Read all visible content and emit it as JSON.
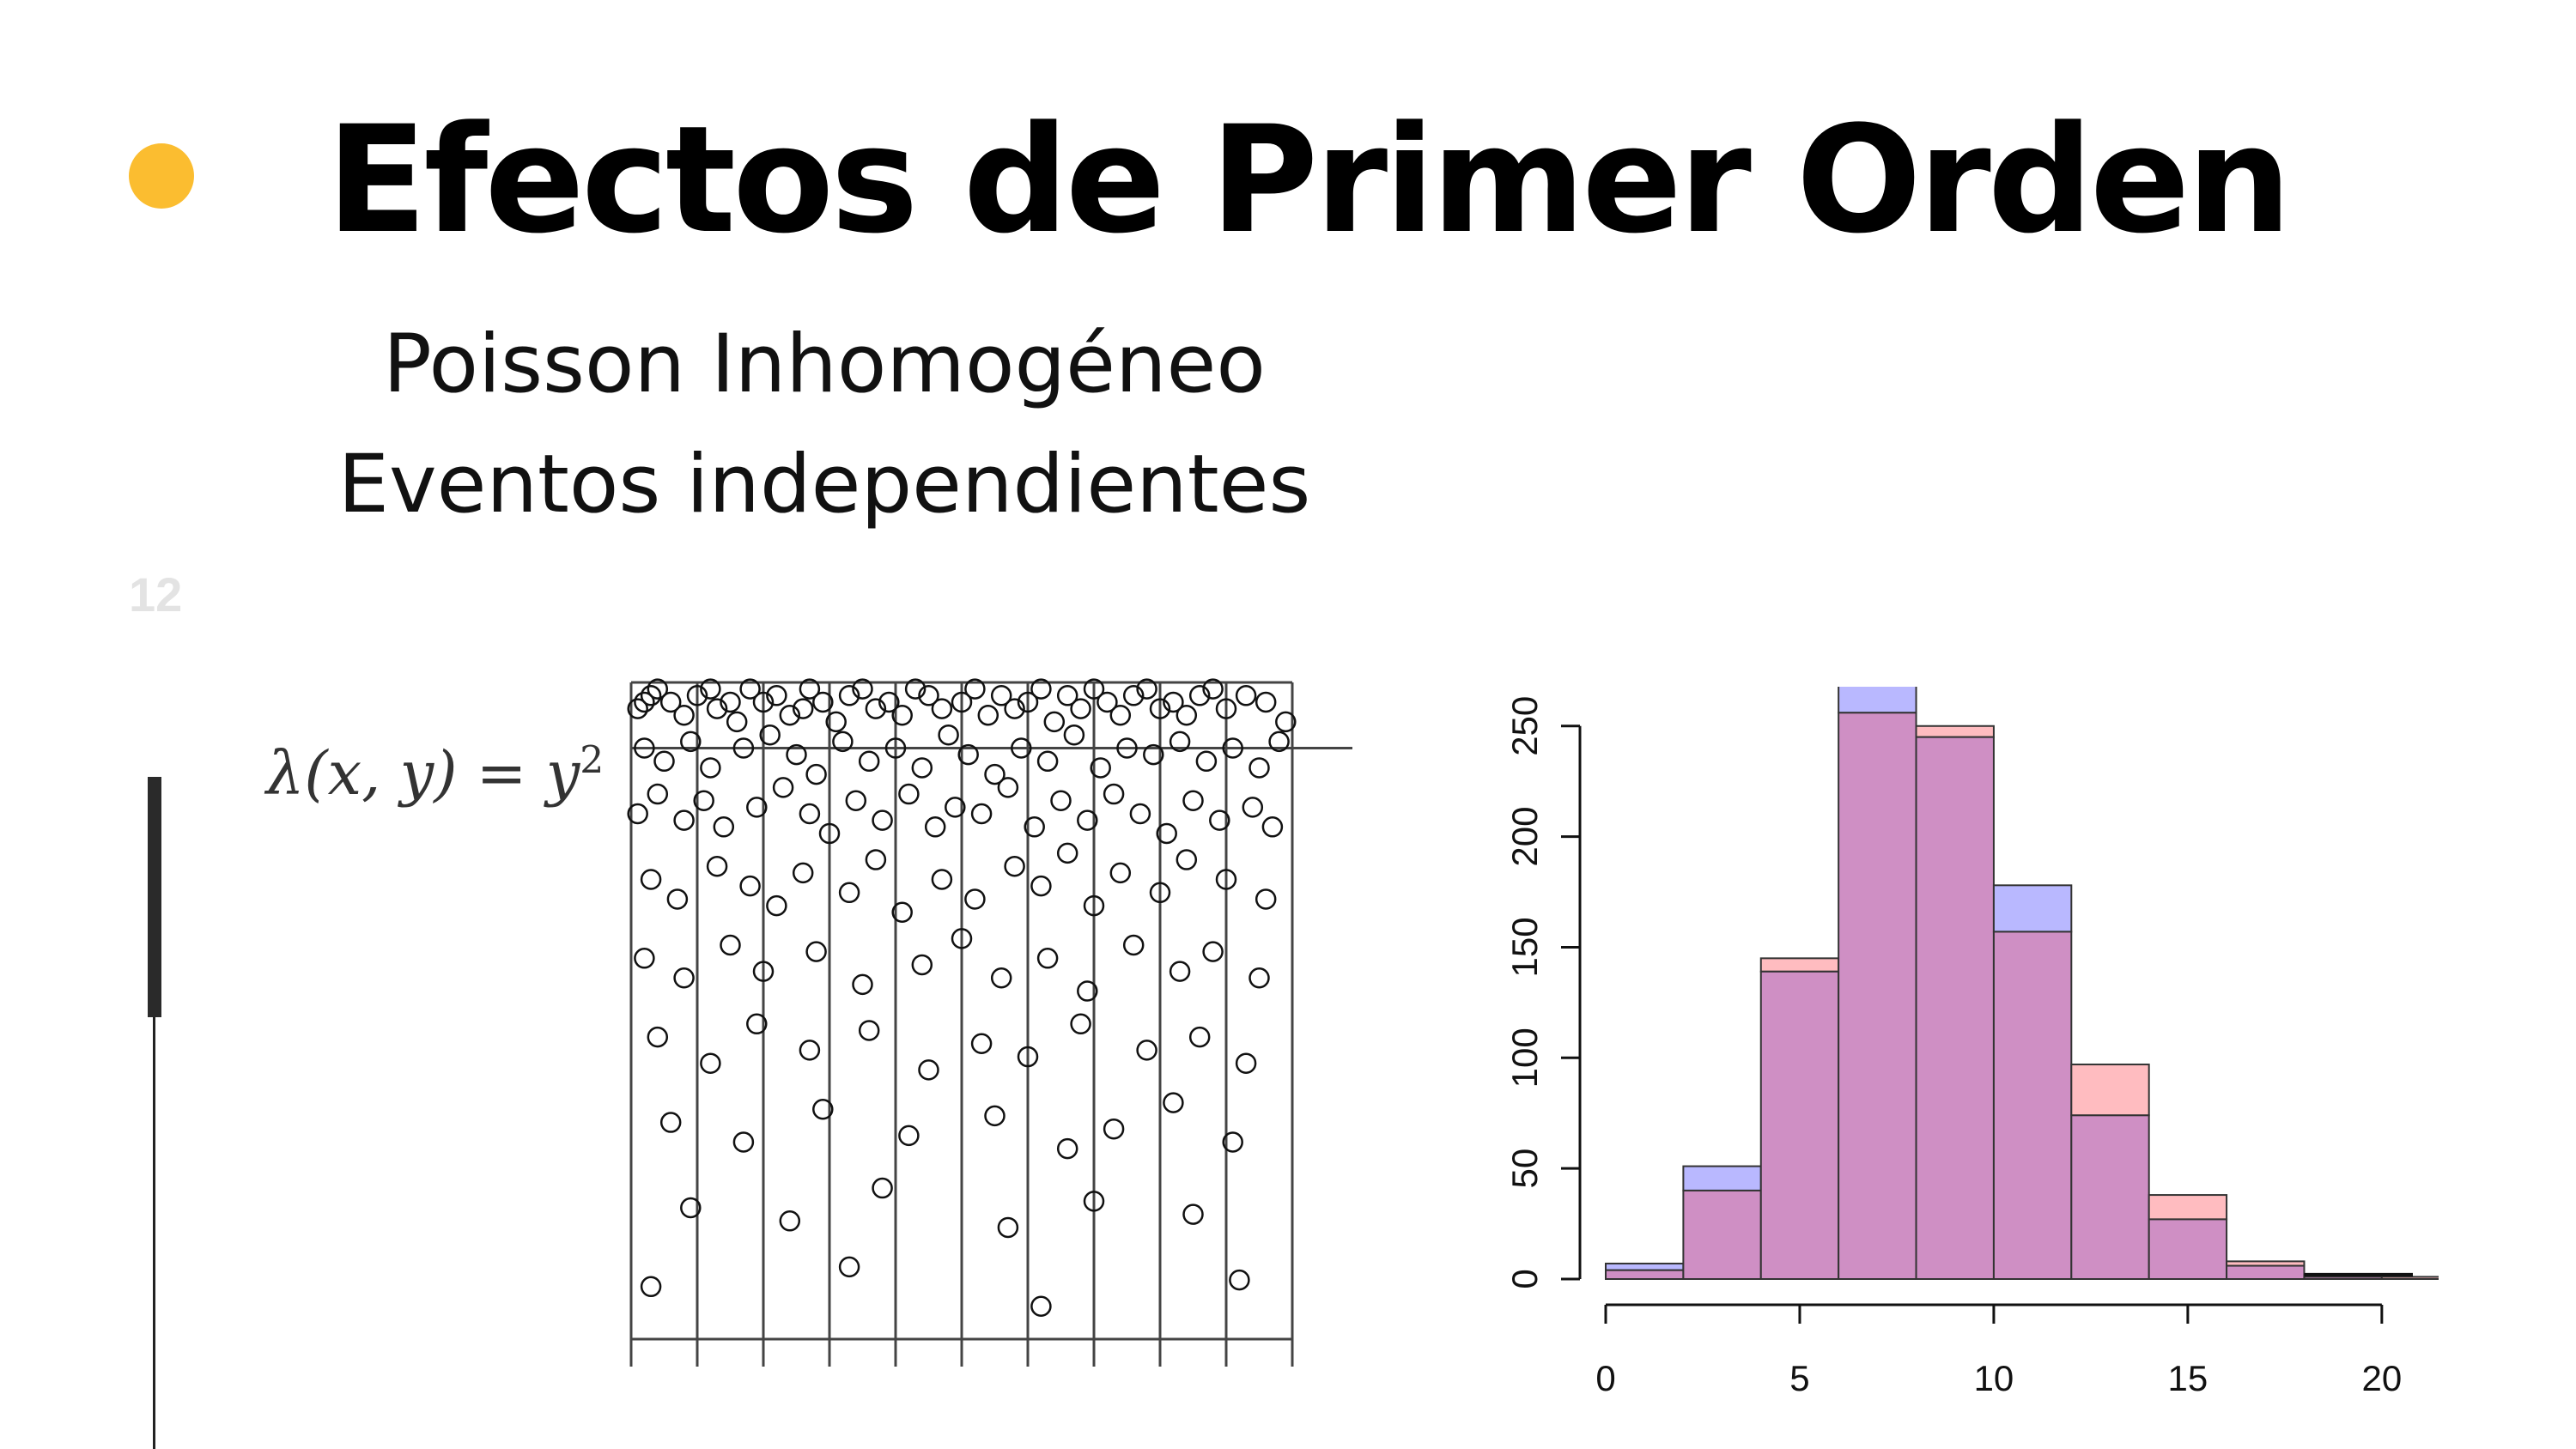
{
  "slide": {
    "page_number": "12",
    "title": "Efectos de Primer Orden",
    "subtitle_line1": "Poisson Inhomogéneo",
    "subtitle_line2": "Eventos independientes",
    "formula": {
      "lhs": "λ(x, y)",
      "equals": "=",
      "base": "y",
      "exponent": "2"
    },
    "accent_color": "#fbbd30"
  },
  "chart_data": [
    {
      "type": "scatter",
      "title": "",
      "xlabel": "",
      "ylabel": "",
      "xlim": [
        0,
        1
      ],
      "ylim": [
        0,
        1
      ],
      "grid": "vertical strips",
      "marker": "open circle",
      "density_note": "points denser near the top (intensity y^2)",
      "vertical_lines_x": [
        0,
        0.1,
        0.2,
        0.3,
        0.4,
        0.5,
        0.6,
        0.7,
        0.8,
        0.9,
        1.0
      ],
      "horizontal_lines_y": [
        0,
        0.9,
        1.0
      ],
      "points": [
        [
          0.01,
          0.96
        ],
        [
          0.02,
          0.97
        ],
        [
          0.03,
          0.98
        ],
        [
          0.04,
          0.99
        ],
        [
          0.06,
          0.97
        ],
        [
          0.08,
          0.95
        ],
        [
          0.1,
          0.98
        ],
        [
          0.12,
          0.99
        ],
        [
          0.13,
          0.96
        ],
        [
          0.15,
          0.97
        ],
        [
          0.16,
          0.94
        ],
        [
          0.18,
          0.99
        ],
        [
          0.2,
          0.97
        ],
        [
          0.22,
          0.98
        ],
        [
          0.24,
          0.95
        ],
        [
          0.26,
          0.96
        ],
        [
          0.27,
          0.99
        ],
        [
          0.29,
          0.97
        ],
        [
          0.31,
          0.94
        ],
        [
          0.33,
          0.98
        ],
        [
          0.35,
          0.99
        ],
        [
          0.37,
          0.96
        ],
        [
          0.39,
          0.97
        ],
        [
          0.41,
          0.95
        ],
        [
          0.43,
          0.99
        ],
        [
          0.45,
          0.98
        ],
        [
          0.47,
          0.96
        ],
        [
          0.5,
          0.97
        ],
        [
          0.52,
          0.99
        ],
        [
          0.54,
          0.95
        ],
        [
          0.56,
          0.98
        ],
        [
          0.58,
          0.96
        ],
        [
          0.6,
          0.97
        ],
        [
          0.62,
          0.99
        ],
        [
          0.64,
          0.94
        ],
        [
          0.66,
          0.98
        ],
        [
          0.68,
          0.96
        ],
        [
          0.7,
          0.99
        ],
        [
          0.72,
          0.97
        ],
        [
          0.74,
          0.95
        ],
        [
          0.76,
          0.98
        ],
        [
          0.78,
          0.99
        ],
        [
          0.8,
          0.96
        ],
        [
          0.82,
          0.97
        ],
        [
          0.84,
          0.95
        ],
        [
          0.86,
          0.98
        ],
        [
          0.88,
          0.99
        ],
        [
          0.9,
          0.96
        ],
        [
          0.93,
          0.98
        ],
        [
          0.96,
          0.97
        ],
        [
          0.99,
          0.94
        ],
        [
          0.02,
          0.9
        ],
        [
          0.05,
          0.88
        ],
        [
          0.09,
          0.91
        ],
        [
          0.12,
          0.87
        ],
        [
          0.17,
          0.9
        ],
        [
          0.21,
          0.92
        ],
        [
          0.25,
          0.89
        ],
        [
          0.28,
          0.86
        ],
        [
          0.32,
          0.91
        ],
        [
          0.36,
          0.88
        ],
        [
          0.4,
          0.9
        ],
        [
          0.44,
          0.87
        ],
        [
          0.48,
          0.92
        ],
        [
          0.51,
          0.89
        ],
        [
          0.55,
          0.86
        ],
        [
          0.59,
          0.9
        ],
        [
          0.63,
          0.88
        ],
        [
          0.67,
          0.92
        ],
        [
          0.71,
          0.87
        ],
        [
          0.75,
          0.9
        ],
        [
          0.79,
          0.89
        ],
        [
          0.83,
          0.91
        ],
        [
          0.87,
          0.88
        ],
        [
          0.91,
          0.9
        ],
        [
          0.95,
          0.87
        ],
        [
          0.98,
          0.91
        ],
        [
          0.01,
          0.8
        ],
        [
          0.04,
          0.83
        ],
        [
          0.08,
          0.79
        ],
        [
          0.11,
          0.82
        ],
        [
          0.14,
          0.78
        ],
        [
          0.19,
          0.81
        ],
        [
          0.23,
          0.84
        ],
        [
          0.27,
          0.8
        ],
        [
          0.3,
          0.77
        ],
        [
          0.34,
          0.82
        ],
        [
          0.38,
          0.79
        ],
        [
          0.42,
          0.83
        ],
        [
          0.46,
          0.78
        ],
        [
          0.49,
          0.81
        ],
        [
          0.53,
          0.8
        ],
        [
          0.57,
          0.84
        ],
        [
          0.61,
          0.78
        ],
        [
          0.65,
          0.82
        ],
        [
          0.69,
          0.79
        ],
        [
          0.73,
          0.83
        ],
        [
          0.77,
          0.8
        ],
        [
          0.81,
          0.77
        ],
        [
          0.85,
          0.82
        ],
        [
          0.89,
          0.79
        ],
        [
          0.94,
          0.81
        ],
        [
          0.97,
          0.78
        ],
        [
          0.03,
          0.7
        ],
        [
          0.07,
          0.67
        ],
        [
          0.13,
          0.72
        ],
        [
          0.18,
          0.69
        ],
        [
          0.22,
          0.66
        ],
        [
          0.26,
          0.71
        ],
        [
          0.33,
          0.68
        ],
        [
          0.37,
          0.73
        ],
        [
          0.41,
          0.65
        ],
        [
          0.47,
          0.7
        ],
        [
          0.52,
          0.67
        ],
        [
          0.58,
          0.72
        ],
        [
          0.62,
          0.69
        ],
        [
          0.66,
          0.74
        ],
        [
          0.7,
          0.66
        ],
        [
          0.74,
          0.71
        ],
        [
          0.8,
          0.68
        ],
        [
          0.84,
          0.73
        ],
        [
          0.9,
          0.7
        ],
        [
          0.96,
          0.67
        ],
        [
          0.02,
          0.58
        ],
        [
          0.08,
          0.55
        ],
        [
          0.15,
          0.6
        ],
        [
          0.2,
          0.56
        ],
        [
          0.28,
          0.59
        ],
        [
          0.35,
          0.54
        ],
        [
          0.44,
          0.57
        ],
        [
          0.5,
          0.61
        ],
        [
          0.56,
          0.55
        ],
        [
          0.63,
          0.58
        ],
        [
          0.69,
          0.53
        ],
        [
          0.76,
          0.6
        ],
        [
          0.83,
          0.56
        ],
        [
          0.88,
          0.59
        ],
        [
          0.95,
          0.55
        ],
        [
          0.04,
          0.46
        ],
        [
          0.12,
          0.42
        ],
        [
          0.19,
          0.48
        ],
        [
          0.27,
          0.44
        ],
        [
          0.36,
          0.47
        ],
        [
          0.45,
          0.41
        ],
        [
          0.53,
          0.45
        ],
        [
          0.6,
          0.43
        ],
        [
          0.68,
          0.48
        ],
        [
          0.78,
          0.44
        ],
        [
          0.86,
          0.46
        ],
        [
          0.93,
          0.42
        ],
        [
          0.06,
          0.33
        ],
        [
          0.17,
          0.3
        ],
        [
          0.29,
          0.35
        ],
        [
          0.42,
          0.31
        ],
        [
          0.55,
          0.34
        ],
        [
          0.66,
          0.29
        ],
        [
          0.73,
          0.32
        ],
        [
          0.82,
          0.36
        ],
        [
          0.91,
          0.3
        ],
        [
          0.09,
          0.2
        ],
        [
          0.24,
          0.18
        ],
        [
          0.38,
          0.23
        ],
        [
          0.57,
          0.17
        ],
        [
          0.7,
          0.21
        ],
        [
          0.85,
          0.19
        ],
        [
          0.03,
          0.08
        ],
        [
          0.33,
          0.11
        ],
        [
          0.62,
          0.05
        ],
        [
          0.92,
          0.09
        ]
      ]
    },
    {
      "type": "bar",
      "title": "",
      "xlabel": "",
      "ylabel": "",
      "bin_edges": [
        0,
        2,
        4,
        6,
        8,
        10,
        12,
        14,
        16,
        18,
        20
      ],
      "x_ticks": [
        "0",
        "5",
        "10",
        "15",
        "20"
      ],
      "x_tick_values": [
        0,
        5,
        10,
        15,
        20
      ],
      "y_ticks": [
        "0",
        "50",
        "100",
        "150",
        "200",
        "250"
      ],
      "y_tick_values": [
        0,
        50,
        100,
        150,
        200,
        250
      ],
      "ylim": [
        0,
        260
      ],
      "xlim": [
        0,
        20.8
      ],
      "grid": false,
      "overlap_color": "#cf8fc4",
      "series": [
        {
          "color": "#ffbcc0",
          "values": [
            4,
            40,
            145,
            256,
            250,
            157,
            97,
            38,
            8,
            2,
            1
          ]
        },
        {
          "color": "#b9b8ff",
          "values": [
            7,
            51,
            139,
            272,
            245,
            178,
            74,
            27,
            6,
            1,
            0
          ]
        }
      ]
    }
  ]
}
